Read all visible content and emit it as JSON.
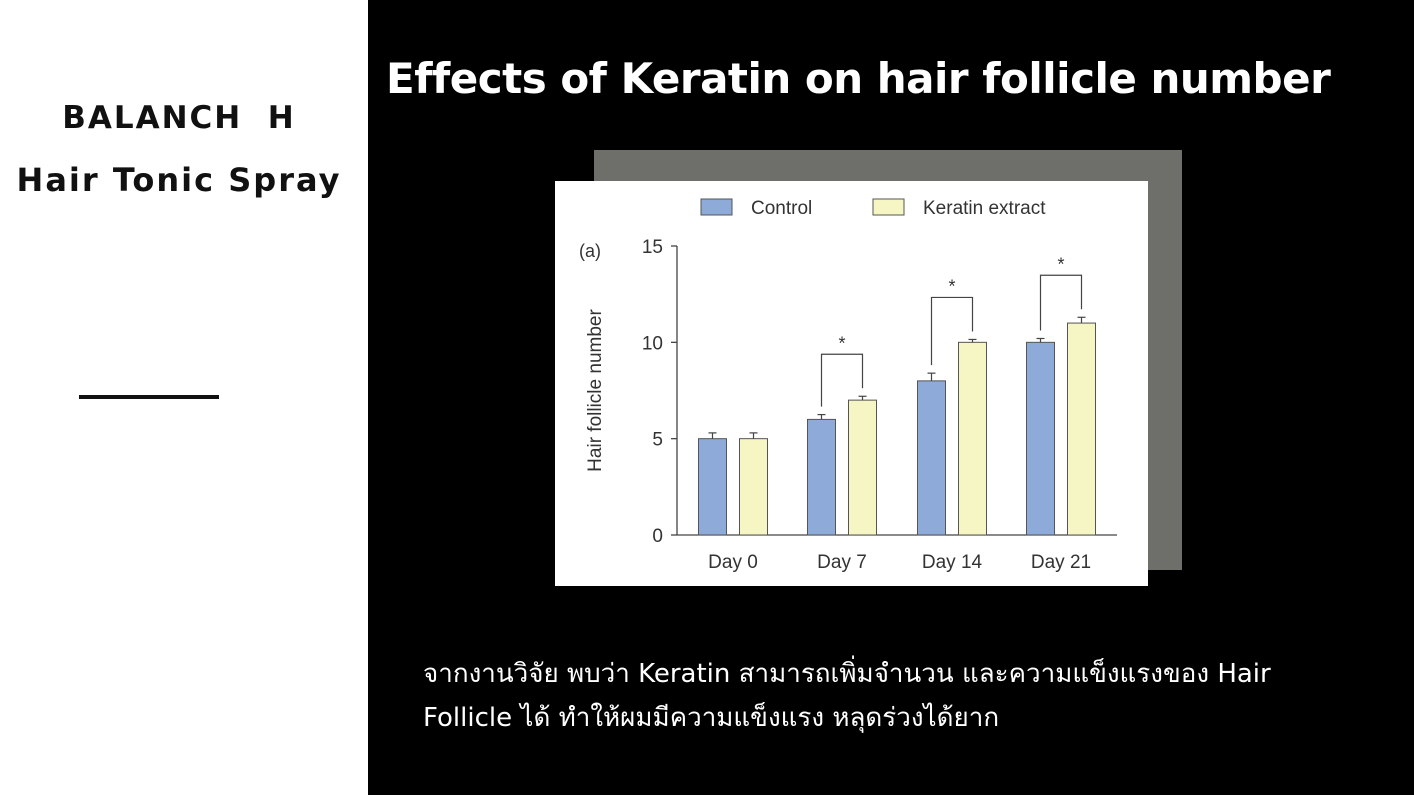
{
  "sidebar": {
    "brand_line1": "BALANCH  H",
    "brand_line2": "Hair Tonic Spray"
  },
  "slide": {
    "title": "Effects of Keratin on hair follicle number",
    "caption_line1": "จากงานวิจัย พบว่า Keratin สามารถเพิ่มจำนวน และความแข็งแรงของ Hair",
    "caption_line2": "Follicle ได้ ทำให้ผมมีความแข็งแรง หลุดร่วงได้ยาก"
  },
  "colors": {
    "control": "#8eaad8",
    "keratin": "#f6f6c4",
    "left_bg": "#ffffff",
    "right_bg": "#000000",
    "shadow": "#6e6e6a"
  },
  "chart_data": {
    "type": "bar",
    "panel_label": "(a)",
    "ylabel": "Hair follicle number",
    "xlabel": "",
    "ylim": [
      0,
      15
    ],
    "yticks": [
      0,
      5,
      10,
      15
    ],
    "categories": [
      "Day 0",
      "Day 7",
      "Day 14",
      "Day 21"
    ],
    "series": [
      {
        "name": "Control",
        "values": [
          5,
          6,
          8,
          10
        ],
        "errors": [
          0.3,
          0.25,
          0.4,
          0.2
        ]
      },
      {
        "name": "Keratin extract",
        "values": [
          5,
          7,
          10,
          11
        ],
        "errors": [
          0.3,
          0.2,
          0.15,
          0.3
        ]
      }
    ],
    "significance": [
      {
        "category": "Day 7",
        "label": "*"
      },
      {
        "category": "Day 14",
        "label": "*"
      },
      {
        "category": "Day 21",
        "label": "*"
      }
    ],
    "legend_position": "top"
  }
}
